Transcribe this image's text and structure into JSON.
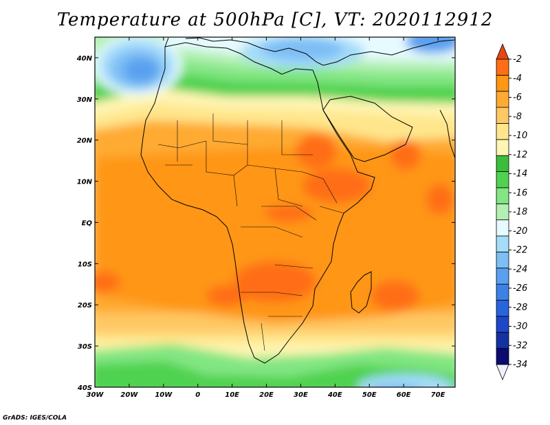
{
  "title": "Temperature at 500hPa [C], VT: 2020112912",
  "credit": "GrADS: IGES/COLA",
  "axes": {
    "x_ticks": [
      "30W",
      "20W",
      "10W",
      "0",
      "10E",
      "20E",
      "30E",
      "40E",
      "50E",
      "60E",
      "70E"
    ],
    "y_ticks": [
      "40N",
      "30N",
      "20N",
      "10N",
      "EQ",
      "10S",
      "20S",
      "30S",
      "40S"
    ]
  },
  "colorbar": {
    "labels": [
      "-2",
      "-4",
      "-6",
      "-8",
      "-10",
      "-12",
      "-14",
      "-16",
      "-18",
      "-20",
      "-22",
      "-24",
      "-26",
      "-28",
      "-30",
      "-32",
      "-34"
    ],
    "colors": [
      "#f0f0ff",
      "#0a0a70",
      "#1432a0",
      "#1e46c8",
      "#2864dc",
      "#3c82e6",
      "#5aa0f0",
      "#7dbef5",
      "#a5dcfa",
      "#e6faff",
      "#b4f0b4",
      "#82e682",
      "#50d250",
      "#3cbe3c",
      "#fff5b4",
      "#ffe68c",
      "#ffc864",
      "#ffaa32",
      "#ff9614",
      "#ff6e14",
      "#e64614"
    ]
  },
  "chart_data": {
    "type": "heatmap",
    "title": "Temperature at 500hPa [C], VT: 2020112912",
    "units": "C",
    "xlim": [
      -30,
      75
    ],
    "ylim": [
      -40,
      45
    ],
    "x_ticks": [
      "30W",
      "20W",
      "10W",
      "0",
      "10E",
      "20E",
      "30E",
      "40E",
      "50E",
      "60E",
      "70E"
    ],
    "y_ticks": [
      "40N",
      "30N",
      "20N",
      "10N",
      "EQ",
      "10S",
      "20S",
      "30S",
      "40S"
    ],
    "colorbar_levels": [
      -2,
      -4,
      -6,
      -8,
      -10,
      -12,
      -14,
      -16,
      -18,
      -20,
      -22,
      -24,
      -26,
      -28,
      -30,
      -32,
      -34
    ],
    "field_regions": [
      {
        "region": "Atlantic west of Iberia / Morocco",
        "value": -26
      },
      {
        "region": "Mediterranean / Southern Europe",
        "value": -20
      },
      {
        "region": "North Africa north of 25N",
        "value": -14
      },
      {
        "region": "Sahara / Arabia band around 20N",
        "value": -10
      },
      {
        "region": "Tropical Africa 15N to 25S",
        "value": -6
      },
      {
        "region": "Sudan / Ethiopia highlands",
        "value": -4
      },
      {
        "region": "Zambia / Zimbabwe / Botswana",
        "value": -4
      },
      {
        "region": "Southern Africa 30S",
        "value": -10
      },
      {
        "region": "Southern Ocean near 40S",
        "value": -14
      },
      {
        "region": "Far southeast corner near 40S 55E",
        "value": -20
      }
    ]
  }
}
